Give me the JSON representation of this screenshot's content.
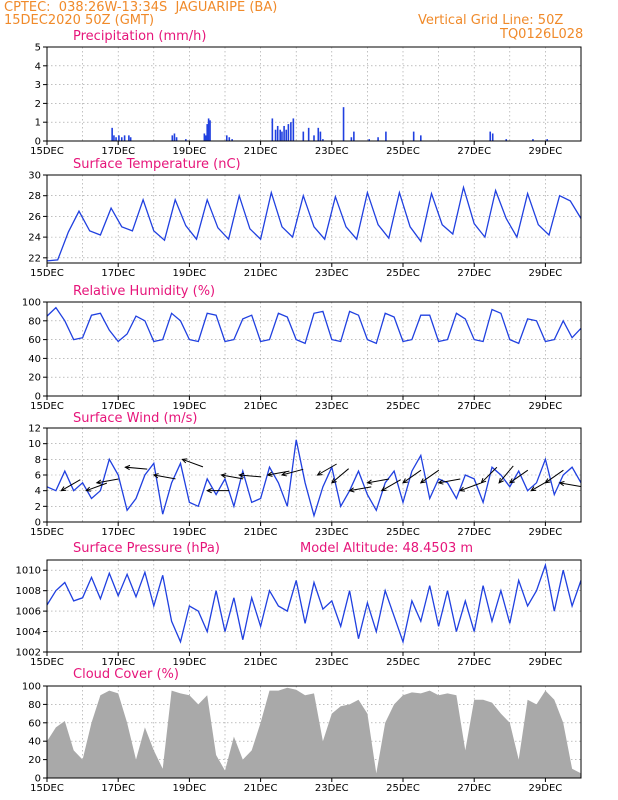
{
  "header": {
    "line1": "CPTEC:  038:26W-13:34S  JAGUARIPE (BA)",
    "line2": "15DEC2020 50Z (GMT)",
    "right1": "Vertical Grid Line: 50Z",
    "right2": "TQ0126L028"
  },
  "colors": {
    "header": "#f08a2a",
    "title": "#e6157a",
    "series": "#2040e0",
    "cloud": "#a9a9a9",
    "arrows": "#000000"
  },
  "x_axis": {
    "labels": [
      "15DEC",
      "17DEC",
      "19DEC",
      "21DEC",
      "23DEC",
      "25DEC",
      "27DEC",
      "29DEC"
    ],
    "label_days": [
      0,
      2,
      4,
      6,
      8,
      10,
      12,
      14
    ],
    "day_span": [
      0,
      15
    ],
    "grid_days": [
      1,
      2,
      3,
      4,
      5,
      6,
      7,
      8,
      9,
      10,
      11,
      12,
      13,
      14
    ]
  },
  "chart_data": [
    {
      "type": "bar",
      "title": "Precipitation (mm/h)",
      "ylim": [
        0,
        5
      ],
      "yticks": [
        0,
        1,
        2,
        3,
        4,
        5
      ],
      "x_days": [
        1.83,
        1.88,
        1.94,
        2.02,
        2.1,
        2.18,
        2.3,
        2.35,
        3.52,
        3.58,
        3.64,
        3.9,
        4.42,
        4.46,
        4.5,
        4.54,
        4.58,
        5.05,
        5.12,
        5.2,
        6.33,
        6.42,
        6.48,
        6.55,
        6.6,
        6.66,
        6.72,
        6.78,
        6.85,
        6.92,
        7.2,
        7.35,
        7.5,
        7.62,
        7.68,
        7.75,
        8.33,
        8.55,
        8.62,
        9.05,
        9.3,
        9.52,
        10.3,
        10.5,
        12.45,
        12.52,
        12.9,
        13.65,
        14.05
      ],
      "values": [
        0.7,
        0.3,
        0.2,
        0.3,
        0.2,
        0.3,
        0.3,
        0.2,
        0.3,
        0.4,
        0.2,
        0.1,
        0.4,
        0.3,
        0.9,
        1.2,
        1.1,
        0.3,
        0.2,
        0.1,
        1.2,
        0.6,
        0.8,
        0.6,
        0.5,
        0.8,
        0.6,
        0.9,
        1.0,
        1.2,
        0.5,
        0.7,
        0.3,
        0.7,
        0.5,
        0.1,
        1.8,
        0.2,
        0.5,
        0.1,
        0.2,
        0.5,
        0.5,
        0.3,
        0.5,
        0.4,
        0.1,
        0.1,
        0.1
      ]
    },
    {
      "type": "line",
      "title": "Surface Temperature (nC)",
      "ylim": [
        21.5,
        30
      ],
      "yticks": [
        22,
        24,
        26,
        28,
        30
      ],
      "series": [
        {
          "x": [
            0,
            0.3,
            0.6,
            0.9,
            1.2,
            1.5,
            1.8,
            2.1,
            2.4,
            2.7,
            3.0,
            3.3,
            3.6,
            3.9,
            4.2,
            4.5,
            4.8,
            5.1,
            5.4,
            5.7,
            6.0,
            6.3,
            6.6,
            6.9,
            7.2,
            7.5,
            7.8,
            8.1,
            8.4,
            8.7,
            9.0,
            9.3,
            9.6,
            9.9,
            10.2,
            10.5,
            10.8,
            11.1,
            11.4,
            11.7,
            12.0,
            12.3,
            12.6,
            12.9,
            13.2,
            13.5,
            13.8,
            14.1,
            14.4,
            14.7,
            15.0
          ],
          "y": [
            21.7,
            21.8,
            24.5,
            26.5,
            24.6,
            24.2,
            26.8,
            25.0,
            24.6,
            27.6,
            24.6,
            23.7,
            27.6,
            25.1,
            23.8,
            27.6,
            24.9,
            23.8,
            28.0,
            24.8,
            23.8,
            28.3,
            25.0,
            24.0,
            28.0,
            25.0,
            23.8,
            27.9,
            25.0,
            23.8,
            28.3,
            25.2,
            23.9,
            28.3,
            25.0,
            23.6,
            28.2,
            25.2,
            24.3,
            28.8,
            25.3,
            24.0,
            28.5,
            25.8,
            24.0,
            28.2,
            25.2,
            24.2,
            28.0,
            27.5,
            25.8
          ]
        }
      ]
    },
    {
      "type": "line",
      "title": "Relative Humidity (%)",
      "ylim": [
        0,
        100
      ],
      "yticks": [
        0,
        20,
        40,
        60,
        80,
        100
      ],
      "series": [
        {
          "x": [
            0,
            0.25,
            0.5,
            0.75,
            1.0,
            1.25,
            1.5,
            1.75,
            2.0,
            2.25,
            2.5,
            2.75,
            3.0,
            3.25,
            3.5,
            3.75,
            4.0,
            4.25,
            4.5,
            4.75,
            5.0,
            5.25,
            5.5,
            5.75,
            6.0,
            6.25,
            6.5,
            6.75,
            7.0,
            7.25,
            7.5,
            7.75,
            8.0,
            8.25,
            8.5,
            8.75,
            9.0,
            9.25,
            9.5,
            9.75,
            10.0,
            10.25,
            10.5,
            10.75,
            11.0,
            11.25,
            11.5,
            11.75,
            12.0,
            12.25,
            12.5,
            12.75,
            13.0,
            13.25,
            13.5,
            13.75,
            14.0,
            14.25,
            14.5,
            14.75,
            15.0
          ],
          "y": [
            85,
            94,
            80,
            60,
            62,
            86,
            88,
            70,
            58,
            66,
            85,
            80,
            58,
            60,
            88,
            80,
            60,
            58,
            88,
            86,
            58,
            60,
            82,
            86,
            58,
            60,
            88,
            84,
            60,
            56,
            88,
            90,
            60,
            58,
            90,
            86,
            60,
            56,
            88,
            84,
            58,
            60,
            86,
            86,
            58,
            60,
            88,
            82,
            60,
            58,
            92,
            88,
            60,
            56,
            82,
            80,
            58,
            60,
            80,
            62,
            72
          ]
        }
      ]
    },
    {
      "type": "line",
      "title": "Surface Wind (m/s)",
      "ylim": [
        0,
        12
      ],
      "yticks": [
        0,
        2,
        4,
        6,
        8,
        10,
        12
      ],
      "series": [
        {
          "x": [
            0,
            0.25,
            0.5,
            0.75,
            1.0,
            1.25,
            1.5,
            1.75,
            2.0,
            2.25,
            2.5,
            2.75,
            3.0,
            3.25,
            3.5,
            3.75,
            4.0,
            4.25,
            4.5,
            4.75,
            5.0,
            5.25,
            5.5,
            5.75,
            6.0,
            6.25,
            6.5,
            6.75,
            7.0,
            7.25,
            7.5,
            7.75,
            8.0,
            8.25,
            8.5,
            8.75,
            9.0,
            9.25,
            9.5,
            9.75,
            10.0,
            10.25,
            10.5,
            10.75,
            11.0,
            11.25,
            11.5,
            11.75,
            12.0,
            12.25,
            12.5,
            12.75,
            13.0,
            13.25,
            13.5,
            13.75,
            14.0,
            14.25,
            14.5,
            14.75,
            15.0
          ],
          "y": [
            4.5,
            4.0,
            6.5,
            4.0,
            5.0,
            3.0,
            4.0,
            8.0,
            6.0,
            1.5,
            3.0,
            6.0,
            7.5,
            1.0,
            5.0,
            7.5,
            2.5,
            2.0,
            5.5,
            3.5,
            5.5,
            2.0,
            6.5,
            2.5,
            3.0,
            7.0,
            5.0,
            2.0,
            10.5,
            5.0,
            0.8,
            4.5,
            7.0,
            2.0,
            4.0,
            6.5,
            3.5,
            1.5,
            5.0,
            6.5,
            2.5,
            6.5,
            8.5,
            3.0,
            5.5,
            5.0,
            3.0,
            6.0,
            5.5,
            2.5,
            7.0,
            6.0,
            4.5,
            6.5,
            4.0,
            5.0,
            8.0,
            3.5,
            6.0,
            7.0,
            5.0
          ]
        }
      ],
      "arrows": {
        "x_days": [
          0.4,
          1.1,
          1.4,
          2.2,
          3.0,
          3.8,
          4.5,
          4.9,
          5.4,
          6.2,
          6.6,
          7.6,
          8.0,
          8.5,
          9.0,
          9.4,
          10.0,
          10.5,
          11.0,
          11.6,
          12.2,
          12.7,
          13.0,
          13.6,
          14.0,
          14.4
        ],
        "speed": [
          4,
          4,
          5,
          7,
          6,
          8,
          4,
          6,
          6,
          6,
          6,
          6,
          5,
          4,
          5,
          4,
          5,
          5,
          5,
          4,
          5,
          5,
          5,
          4,
          5,
          5
        ],
        "dir_deg": [
          60,
          70,
          80,
          95,
          100,
          110,
          90,
          100,
          95,
          80,
          75,
          60,
          50,
          80,
          80,
          60,
          55,
          55,
          80,
          70,
          45,
          40,
          55,
          60,
          55,
          100
        ]
      }
    },
    {
      "type": "line",
      "title": "Surface Pressure (hPa)",
      "subtitle": "Model Altitude: 48.4503 m",
      "ylim": [
        1002,
        1011
      ],
      "yticks": [
        1002,
        1004,
        1006,
        1008,
        1010
      ],
      "series": [
        {
          "x": [
            0,
            0.25,
            0.5,
            0.75,
            1.0,
            1.25,
            1.5,
            1.75,
            2.0,
            2.25,
            2.5,
            2.75,
            3.0,
            3.25,
            3.5,
            3.75,
            4.0,
            4.25,
            4.5,
            4.75,
            5.0,
            5.25,
            5.5,
            5.75,
            6.0,
            6.25,
            6.5,
            6.75,
            7.0,
            7.25,
            7.5,
            7.75,
            8.0,
            8.25,
            8.5,
            8.75,
            9.0,
            9.25,
            9.5,
            9.75,
            10.0,
            10.25,
            10.5,
            10.75,
            11.0,
            11.25,
            11.5,
            11.75,
            12.0,
            12.25,
            12.5,
            12.75,
            13.0,
            13.25,
            13.5,
            13.75,
            14.0,
            14.25,
            14.5,
            14.75,
            15.0
          ],
          "y": [
            1006.6,
            1008.0,
            1008.8,
            1007.0,
            1007.3,
            1009.3,
            1007.2,
            1009.7,
            1007.5,
            1009.6,
            1007.4,
            1009.8,
            1006.5,
            1009.5,
            1005.0,
            1003.0,
            1006.5,
            1006.0,
            1004.0,
            1008.0,
            1004.0,
            1007.3,
            1003.2,
            1007.3,
            1004.5,
            1008.0,
            1006.5,
            1006.0,
            1009.0,
            1004.8,
            1008.8,
            1006.2,
            1007.0,
            1004.5,
            1008.0,
            1003.3,
            1006.8,
            1004.0,
            1008.0,
            1005.5,
            1003.0,
            1007.0,
            1005.0,
            1008.5,
            1004.5,
            1008.0,
            1004.0,
            1007.0,
            1004.0,
            1008.5,
            1005.0,
            1008.0,
            1004.8,
            1009.0,
            1006.5,
            1008.0,
            1010.5,
            1006.0,
            1010.0,
            1006.5,
            1009.0
          ]
        }
      ]
    },
    {
      "type": "area",
      "title": "Cloud Cover (%)",
      "ylim": [
        0,
        100
      ],
      "yticks": [
        0,
        20,
        40,
        60,
        80,
        100
      ],
      "series": [
        {
          "x": [
            0,
            0.25,
            0.5,
            0.75,
            1.0,
            1.25,
            1.5,
            1.75,
            2.0,
            2.25,
            2.5,
            2.75,
            3.0,
            3.25,
            3.5,
            3.75,
            4.0,
            4.25,
            4.5,
            4.75,
            5.0,
            5.25,
            5.5,
            5.75,
            6.0,
            6.25,
            6.5,
            6.75,
            7.0,
            7.25,
            7.5,
            7.75,
            8.0,
            8.25,
            8.5,
            8.75,
            9.0,
            9.25,
            9.5,
            9.75,
            10.0,
            10.25,
            10.5,
            10.75,
            11.0,
            11.25,
            11.5,
            11.75,
            12.0,
            12.25,
            12.5,
            12.75,
            13.0,
            13.25,
            13.5,
            13.75,
            14.0,
            14.25,
            14.5,
            14.75,
            15.0
          ],
          "y": [
            40,
            55,
            62,
            30,
            20,
            60,
            90,
            95,
            92,
            60,
            20,
            55,
            30,
            10,
            95,
            92,
            90,
            80,
            90,
            25,
            8,
            45,
            20,
            30,
            60,
            95,
            95,
            98,
            96,
            90,
            92,
            40,
            70,
            78,
            80,
            85,
            70,
            5,
            60,
            80,
            90,
            93,
            92,
            95,
            90,
            92,
            90,
            30,
            85,
            85,
            82,
            70,
            60,
            20,
            85,
            80,
            95,
            85,
            60,
            10,
            5
          ]
        }
      ]
    }
  ]
}
